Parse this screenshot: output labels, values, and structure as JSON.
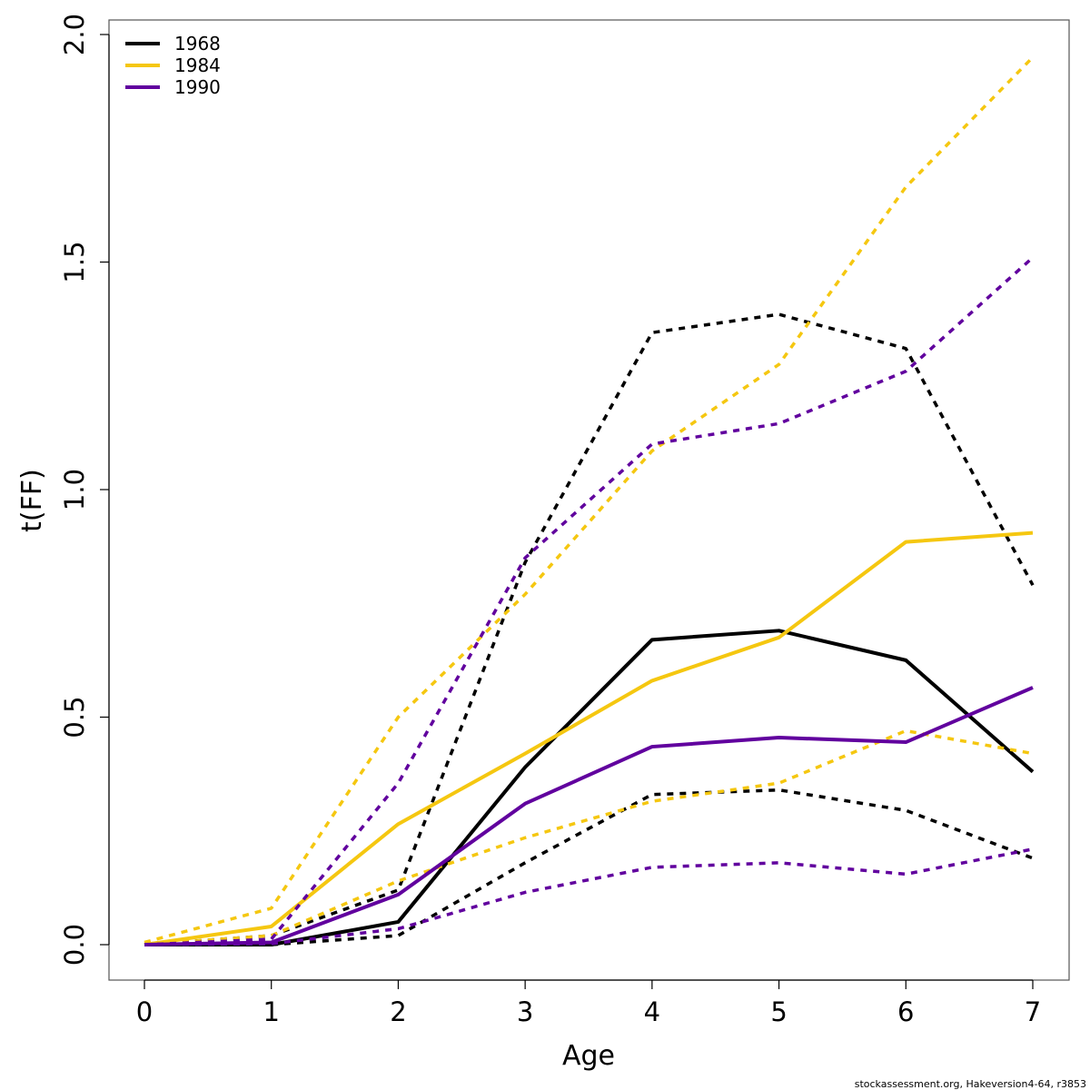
{
  "chart_data": {
    "type": "line",
    "xlabel": "Age",
    "ylabel": "t(FF)",
    "xlim": [
      0,
      7
    ],
    "ylim": [
      0,
      2.0
    ],
    "x_ticks": [
      "0",
      "1",
      "2",
      "3",
      "4",
      "5",
      "6",
      "7"
    ],
    "y_ticks": [
      "0.0",
      "0.5",
      "1.0",
      "1.5",
      "2.0"
    ],
    "legend_placement": "top-left",
    "grid": false,
    "x": [
      0,
      1,
      2,
      3,
      4,
      5,
      6,
      7
    ],
    "series": [
      {
        "name": "1968",
        "color": "#000000",
        "values": [
          0.0,
          0.0,
          0.05,
          0.39,
          0.67,
          0.69,
          0.625,
          0.38
        ],
        "lower": [
          0.0,
          0.0,
          0.02,
          0.18,
          0.33,
          0.34,
          0.295,
          0.19
        ],
        "upper": [
          0.0,
          0.02,
          0.12,
          0.84,
          1.345,
          1.385,
          1.31,
          0.79
        ]
      },
      {
        "name": "1984",
        "color": "#F5C710",
        "values": [
          0.0,
          0.04,
          0.265,
          0.42,
          0.58,
          0.675,
          0.885,
          0.905
        ],
        "lower": [
          0.0,
          0.02,
          0.14,
          0.235,
          0.315,
          0.355,
          0.47,
          0.42
        ],
        "upper": [
          0.005,
          0.08,
          0.5,
          0.77,
          1.085,
          1.275,
          1.665,
          1.95
        ]
      },
      {
        "name": "1990",
        "color": "#61009E",
        "values": [
          0.0,
          0.005,
          0.11,
          0.31,
          0.435,
          0.455,
          0.445,
          0.565
        ],
        "lower": [
          0.0,
          0.002,
          0.035,
          0.115,
          0.17,
          0.18,
          0.155,
          0.21
        ],
        "upper": [
          0.0,
          0.012,
          0.355,
          0.85,
          1.1,
          1.145,
          1.26,
          1.51
        ]
      }
    ]
  },
  "footer_text": "stockassessment.org, Hakeversion4-64, r3853"
}
